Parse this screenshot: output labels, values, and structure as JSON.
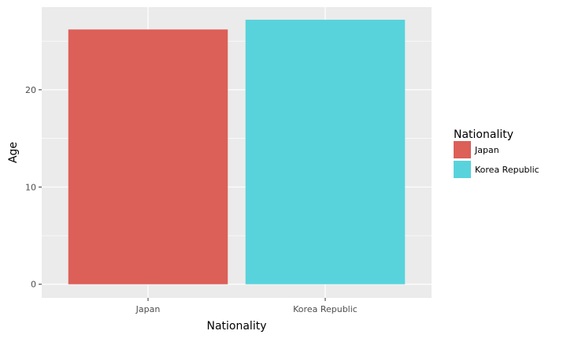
{
  "chart_data": {
    "type": "bar",
    "title": "",
    "xlabel": "Nationality",
    "ylabel": "Age",
    "categories": [
      "Japan",
      "Korea Republic"
    ],
    "values": [
      26.2,
      27.2
    ],
    "colors": [
      "#dc5f58",
      "#58d3dc"
    ],
    "ylim": [
      -1.4,
      28.5
    ],
    "yticks": [
      0,
      10,
      20
    ],
    "ytick_labels": [
      "0",
      "10",
      "20"
    ],
    "grid": true,
    "panel_background": "#ebebeb",
    "legend": {
      "title": "Nationality",
      "placement": "right",
      "entries": [
        "Japan",
        "Korea Republic"
      ]
    }
  }
}
